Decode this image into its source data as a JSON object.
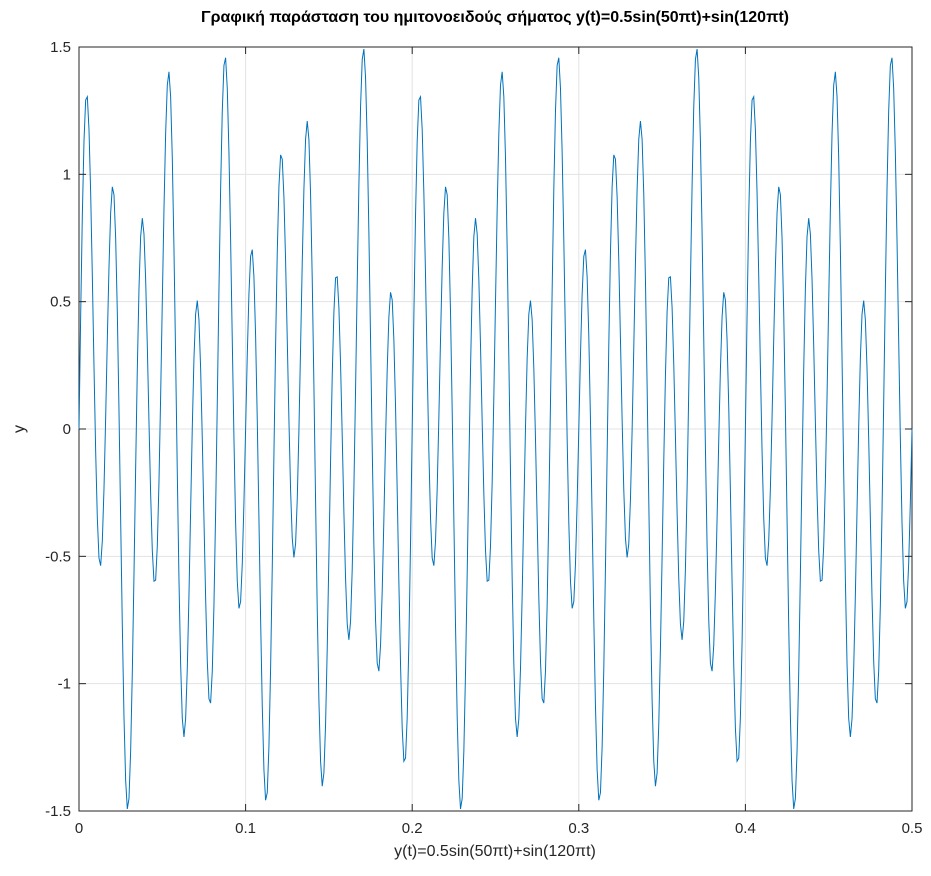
{
  "chart_data": {
    "type": "line",
    "title": "Γραφική παράσταση του ημιτονοειδούς σήματος y(t)=0.5sin(50πt)+sin(120πt)",
    "xlabel": "y(t)=0.5sin(50πt)+sin(120πt)",
    "ylabel": "y",
    "xlim": [
      0,
      0.5
    ],
    "ylim": [
      -1.5,
      1.5
    ],
    "xticks": [
      "0",
      "0.1",
      "0.2",
      "0.3",
      "0.4",
      "0.5"
    ],
    "xtick_values": [
      0,
      0.1,
      0.2,
      0.3,
      0.4,
      0.5
    ],
    "yticks": [
      "-1.5",
      "-1",
      "-0.5",
      "0",
      "0.5",
      "1",
      "1.5"
    ],
    "ytick_values": [
      -1.5,
      -1,
      -0.5,
      0,
      0.5,
      1,
      1.5
    ],
    "grid": true,
    "series": [
      {
        "function": "0.5*sin(50*pi*t)+sin(120*pi*t)",
        "t_start": 0,
        "t_end": 0.5,
        "sample_step": 0.001,
        "color": "#0072BD"
      }
    ]
  }
}
